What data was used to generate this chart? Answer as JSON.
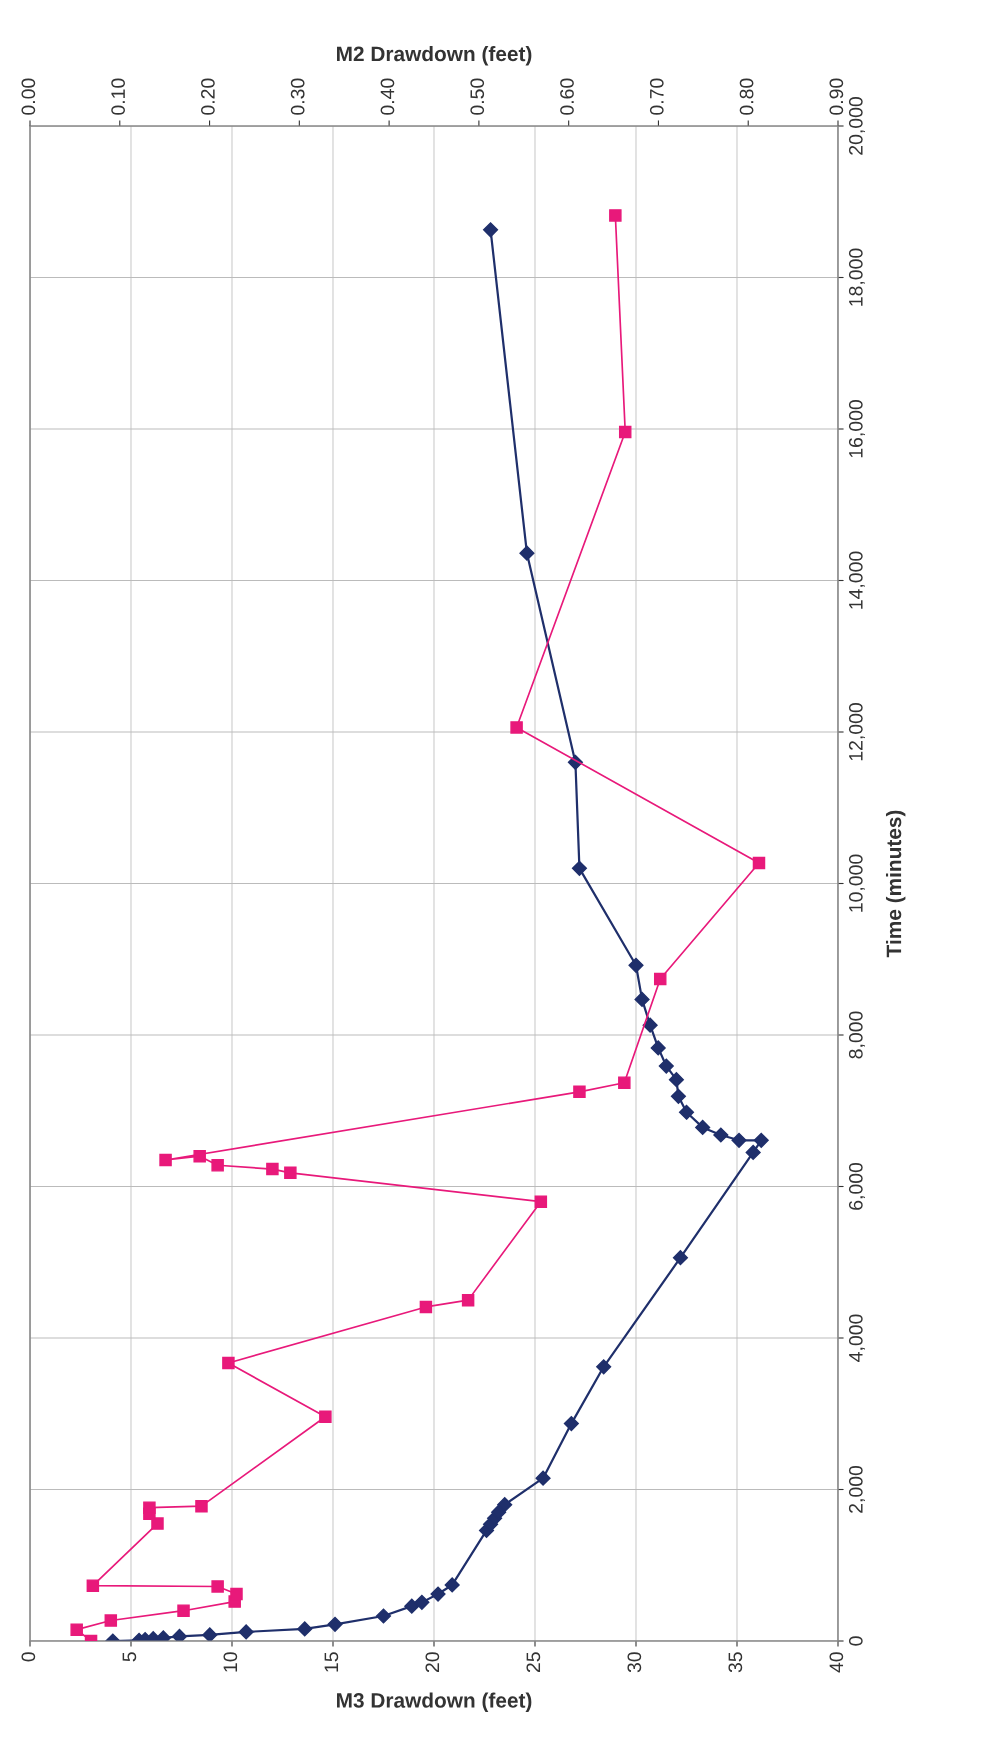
{
  "chart_data": {
    "type": "line",
    "xlabel": "M3 Drawdown (feet)",
    "x2label": "M2 Drawdown (feet)",
    "ylabel": "Time (minutes)",
    "xlim": [
      0,
      40
    ],
    "xticks": [
      0,
      5,
      10,
      15,
      20,
      25,
      30,
      35,
      40
    ],
    "x2lim": [
      0,
      0.9
    ],
    "x2ticks": [
      {
        "value": 0,
        "label": "0.00"
      },
      {
        "value": 0.1,
        "label": "0.10"
      },
      {
        "value": 0.2,
        "label": "0.20"
      },
      {
        "value": 0.3,
        "label": "0.30"
      },
      {
        "value": 0.4,
        "label": "0.40"
      },
      {
        "value": 0.5,
        "label": "0.50"
      },
      {
        "value": 0.6,
        "label": "0.60"
      },
      {
        "value": 0.7,
        "label": "0.70"
      },
      {
        "value": 0.8,
        "label": "0.80"
      },
      {
        "value": 0.9,
        "label": "0.90"
      }
    ],
    "ylim": [
      0,
      20000
    ],
    "yticks": [
      0,
      {
        "value": 2000,
        "label": "2,000"
      },
      {
        "value": 4000,
        "label": "4,000"
      },
      {
        "value": 6000,
        "label": "6,000"
      },
      {
        "value": 8000,
        "label": "8,000"
      },
      {
        "value": 10000,
        "label": "10,000"
      },
      {
        "value": 12000,
        "label": "12,000"
      },
      {
        "value": 14000,
        "label": "14,000"
      },
      {
        "value": 16000,
        "label": "16,000"
      },
      {
        "value": 18000,
        "label": "18,000"
      },
      {
        "value": 20000,
        "label": "20,000"
      }
    ],
    "grid": true,
    "legend": false,
    "line_style": "solid",
    "series": [
      {
        "color": "#1f2f6b",
        "marker": "diamond",
        "x": [
          4.1,
          5.4,
          5.7,
          6.1,
          6.6,
          7.4,
          8.9,
          10.7,
          13.6,
          15.1,
          17.5,
          18.9,
          19.4,
          20.2,
          20.9,
          22.6,
          22.8,
          23.0,
          23.2,
          23.5,
          25.4,
          26.8,
          28.4,
          32.2,
          35.8,
          36.2,
          35.1,
          34.2,
          33.3,
          32.5,
          32.1,
          32.0,
          31.5,
          31.1,
          30.7,
          30.3,
          30.0,
          27.2,
          27.0,
          24.6,
          22.8
        ],
        "values": [
          0,
          10,
          20,
          30,
          40,
          60,
          80,
          120,
          160,
          220,
          330,
          460,
          510,
          620,
          740,
          1460,
          1540,
          1620,
          1700,
          1800,
          2150,
          2870,
          3620,
          5060,
          6450,
          6610,
          6610,
          6680,
          6780,
          6980,
          7190,
          7410,
          7590,
          7830,
          8130,
          8470,
          8920,
          10200,
          11600,
          14360,
          18630
        ]
      },
      {
        "color": "#e8197a",
        "marker": "square",
        "axis": "x2",
        "x": [
          0.068,
          0.052,
          0.09,
          0.171,
          0.228,
          0.23,
          0.209,
          0.07,
          0.142,
          0.133,
          0.133,
          0.191,
          0.329,
          0.221,
          0.441,
          0.488,
          0.569,
          0.29,
          0.27,
          0.209,
          0.189,
          0.151,
          0.612,
          0.662,
          0.702,
          0.812,
          0.542,
          0.663,
          0.652
        ],
        "values": [
          0,
          150,
          270,
          400,
          520,
          620,
          720,
          730,
          1550,
          1680,
          1760,
          1780,
          2960,
          3670,
          4410,
          4500,
          5800,
          6180,
          6230,
          6280,
          6400,
          6350,
          7250,
          7370,
          8740,
          10270,
          12060,
          15960,
          18820
        ]
      }
    ]
  }
}
